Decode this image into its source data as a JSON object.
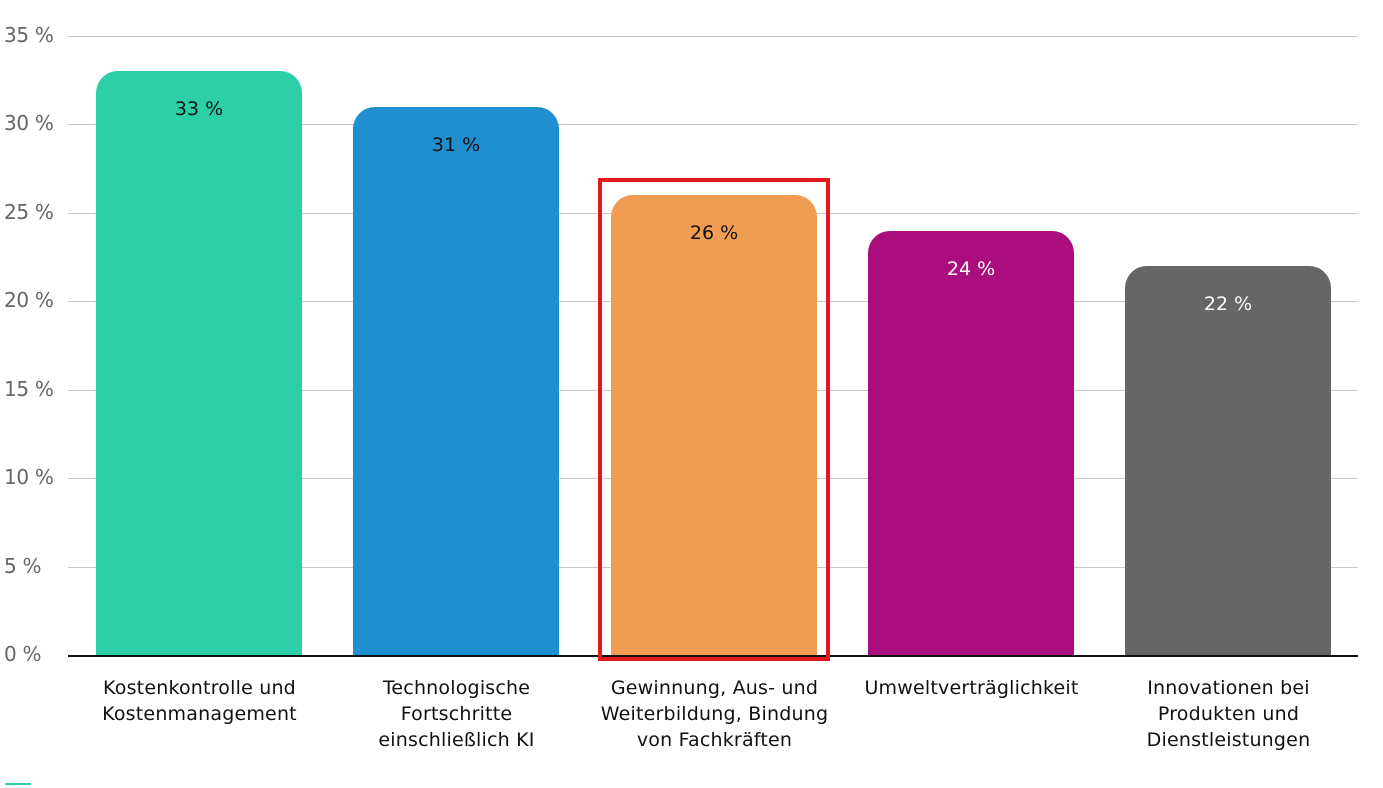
{
  "chart_data": {
    "type": "bar",
    "title": "",
    "xlabel": "",
    "ylabel": "",
    "ylim": [
      0,
      35
    ],
    "grid": true,
    "legend": null,
    "yticks": [
      "0 %",
      "5 %",
      "10 %",
      "15 %",
      "20 %",
      "25 %",
      "30 %",
      "35 %"
    ],
    "categories": [
      "Kostenkontrolle und Kostenmanagement",
      "Technologische Fortschritte einschließlich KI",
      "Gewinnung, Aus- und Weiterbildung, Bindung von Fachkräften",
      "Umweltverträglichkeit",
      "Innovationen bei Produkten und Dienstleistungen"
    ],
    "values": [
      33,
      31,
      26,
      24,
      22
    ],
    "value_labels": [
      "33 %",
      "31 %",
      "26 %",
      "24 %",
      "22 %"
    ],
    "colors": [
      "#2dcfa9",
      "#1f8fd0",
      "#f09d51",
      "#aa0e7c",
      "#666666"
    ],
    "label_colors": [
      "#111111",
      "#111111",
      "#111111",
      "#ffffff",
      "#ffffff"
    ],
    "highlighted_index": 2,
    "highlight_color": "#e3171e"
  },
  "xlabels": {
    "c0": [
      "Kostenkontrolle und",
      "Kostenmanagement"
    ],
    "c1": [
      "Technologische",
      "Fortschritte",
      "einschließlich KI"
    ],
    "c2": [
      "Gewinnung, Aus- und",
      "Weiterbildung, Bindung",
      "von Fachkräften"
    ],
    "c3": [
      "Umweltverträglichkeit"
    ],
    "c4": [
      "Innovationen bei",
      "Produkten und",
      "Dienstleistungen"
    ]
  }
}
